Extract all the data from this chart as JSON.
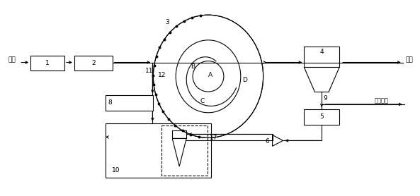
{
  "bg_color": "#ffffff",
  "line_color": "#000000",
  "fig_width": 5.93,
  "fig_height": 2.78,
  "dpi": 100,
  "labels": {
    "jinshui": "进水",
    "chushui": "出水",
    "shengyu": "剩余污泥",
    "n1": "1",
    "n2": "2",
    "n3": "3",
    "n4": "4",
    "n5": "5",
    "n6": "6",
    "n7": "17",
    "n8": "8",
    "n9": "9",
    "n10": "10",
    "n11": "11",
    "n12": "12",
    "A": "A",
    "B": "B",
    "C": "C",
    "D": "D"
  }
}
